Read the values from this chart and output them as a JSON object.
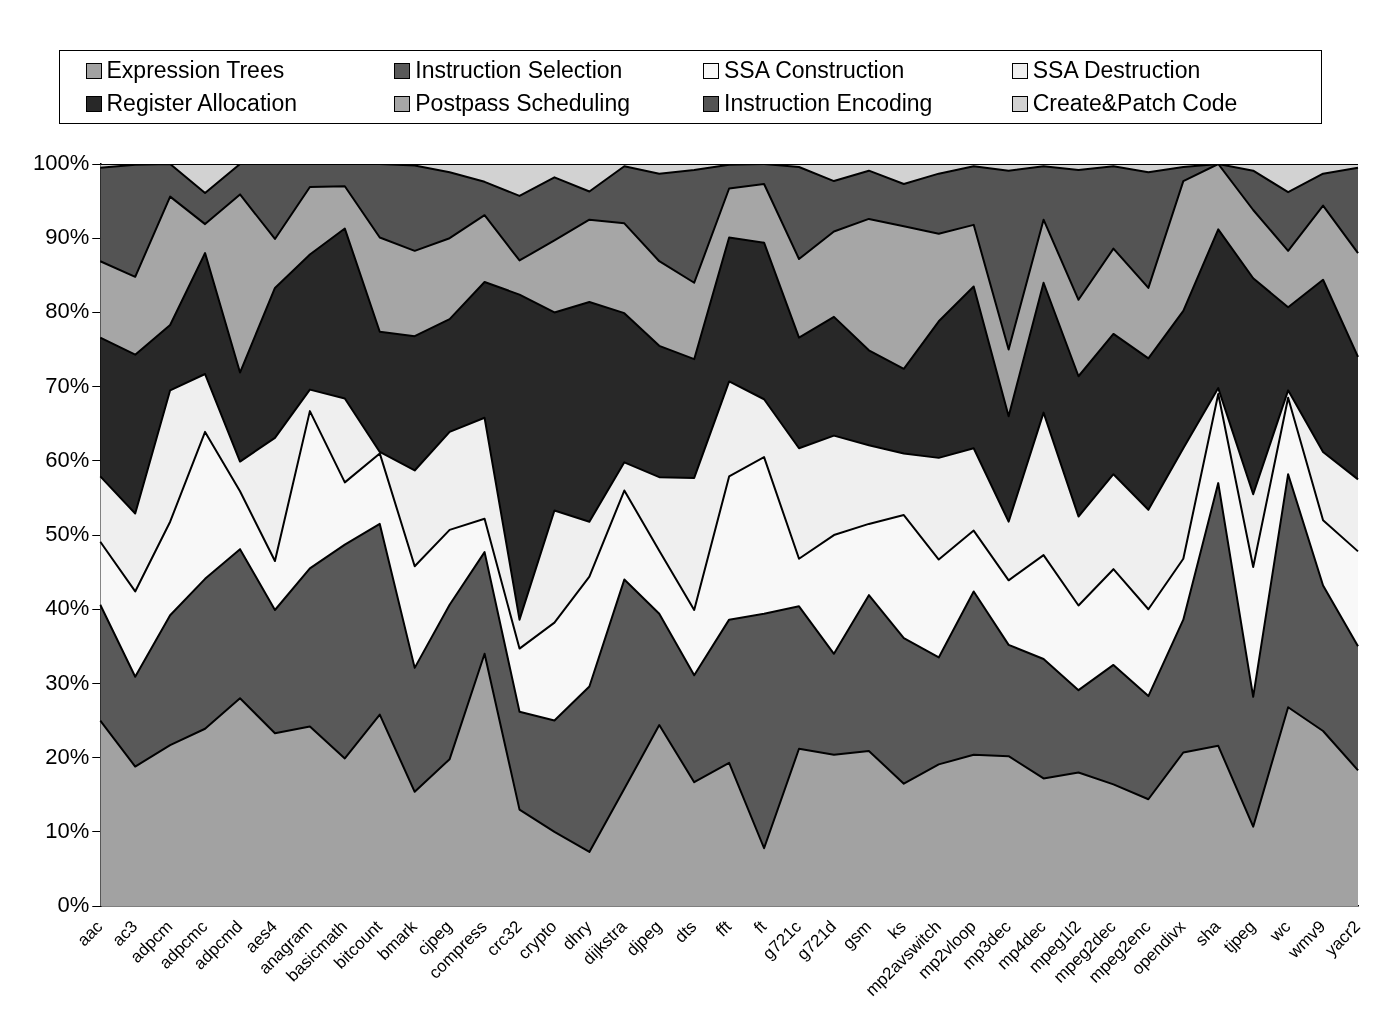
{
  "chart_data": {
    "type": "area",
    "stacked": true,
    "legend": "top",
    "grid": false,
    "marker": "none",
    "categories": [
      "aac",
      "ac3",
      "adpcm",
      "adpcmc",
      "adpcmd",
      "aes4",
      "anagram",
      "basicmath",
      "bitcount",
      "bmark",
      "cjpeg",
      "compress",
      "crc32",
      "crypto",
      "dhry",
      "dijkstra",
      "djpeg",
      "dts",
      "fft",
      "ft",
      "g721c",
      "g721d",
      "gsm",
      "ks",
      "mp2avswitch",
      "mp2vloop",
      "mp3dec",
      "mp4dec",
      "mpeg1l2",
      "mpeg2dec",
      "mpeg2enc",
      "opendivx",
      "sha",
      "tjpeg",
      "wc",
      "wmv9",
      "yacr2"
    ],
    "ylim": [
      0,
      100
    ],
    "yticks": [
      {
        "value": 0,
        "label": "0%"
      },
      {
        "value": 10,
        "label": "10%"
      },
      {
        "value": 20,
        "label": "20%"
      },
      {
        "value": 30,
        "label": "30%"
      },
      {
        "value": 40,
        "label": "40%"
      },
      {
        "value": 50,
        "label": "50%"
      },
      {
        "value": 60,
        "label": "60%"
      },
      {
        "value": 70,
        "label": "70%"
      },
      {
        "value": 80,
        "label": "80%"
      },
      {
        "value": 90,
        "label": "90%"
      },
      {
        "value": 100,
        "label": "100%"
      }
    ],
    "series": [
      {
        "name": "Expression Trees",
        "color": "#a2a2a2",
        "values": [
          25.0,
          18.8,
          21.7,
          23.9,
          28.0,
          23.3,
          24.2,
          19.9,
          25.8,
          15.4,
          19.8,
          34.0,
          13.0,
          10.0,
          7.3,
          15.8,
          24.4,
          16.7,
          19.3,
          7.8,
          21.2,
          20.4,
          20.9,
          16.5,
          19.1,
          20.4,
          20.2,
          17.2,
          18.0,
          16.4,
          14.4,
          20.7,
          21.6,
          10.7,
          26.8,
          23.6,
          18.3
        ]
      },
      {
        "name": "Instruction Selection",
        "color": "#595959",
        "values": [
          15.6,
          12.1,
          17.5,
          20.2,
          20.1,
          16.6,
          21.3,
          28.8,
          25.7,
          16.7,
          20.8,
          13.7,
          13.2,
          15.0,
          22.3,
          28.2,
          15.0,
          14.4,
          19.3,
          31.6,
          19.2,
          13.6,
          21.0,
          19.6,
          14.4,
          22.0,
          15.0,
          16.1,
          11.1,
          16.1,
          13.9,
          17.9,
          35.4,
          17.5,
          31.4,
          19.6,
          16.7
        ]
      },
      {
        "name": "SSA Construction",
        "color": "#f8f8f8",
        "values": [
          8.5,
          11.5,
          12.6,
          19.8,
          7.8,
          6.6,
          21.2,
          8.4,
          9.5,
          13.7,
          10.1,
          4.5,
          8.5,
          13.2,
          14.8,
          12.0,
          8.5,
          8.8,
          19.3,
          21.1,
          6.4,
          16.0,
          9.6,
          16.6,
          13.2,
          8.2,
          8.7,
          14.0,
          11.4,
          12.9,
          11.7,
          8.2,
          12.0,
          17.5,
          10.3,
          8.8,
          12.8
        ]
      },
      {
        "name": "SSA Destruction",
        "color": "#efefef",
        "values": [
          8.8,
          10.5,
          17.7,
          7.8,
          4.0,
          16.6,
          2.9,
          11.3,
          0.2,
          12.9,
          13.2,
          13.6,
          3.9,
          15.1,
          7.4,
          3.8,
          9.9,
          17.8,
          12.8,
          7.8,
          14.9,
          13.4,
          10.6,
          8.3,
          13.7,
          11.1,
          7.9,
          19.2,
          12.0,
          12.8,
          13.4,
          14.9,
          0.8,
          9.8,
          1.0,
          9.2,
          9.7
        ]
      },
      {
        "name": "Register Allocation",
        "color": "#282828",
        "values": [
          18.7,
          21.4,
          8.8,
          16.3,
          12.0,
          20.2,
          18.2,
          22.9,
          16.2,
          18.1,
          15.2,
          18.3,
          43.8,
          26.7,
          29.6,
          20.1,
          17.7,
          16.0,
          19.4,
          21.1,
          14.9,
          16.0,
          12.8,
          11.4,
          18.4,
          21.8,
          14.2,
          17.5,
          18.9,
          18.9,
          20.4,
          18.5,
          21.4,
          29.1,
          11.2,
          23.2,
          16.5
        ]
      },
      {
        "name": "Postpass Scheduling",
        "color": "#a6a6a6",
        "values": [
          10.3,
          10.5,
          17.3,
          3.9,
          24.0,
          6.6,
          9.1,
          5.7,
          12.7,
          11.5,
          10.9,
          9.0,
          4.6,
          9.7,
          11.1,
          12.1,
          11.4,
          10.3,
          6.6,
          7.9,
          10.6,
          11.5,
          17.7,
          19.2,
          11.8,
          8.3,
          9.0,
          8.5,
          10.3,
          11.5,
          9.5,
          17.5,
          8.8,
          9.2,
          7.6,
          10.0,
          14.0
        ]
      },
      {
        "name": "Instruction Encoding",
        "color": "#545454",
        "values": [
          12.6,
          15.1,
          4.4,
          4.2,
          4.1,
          10.1,
          3.1,
          3.0,
          9.9,
          11.5,
          8.9,
          4.5,
          8.7,
          8.5,
          3.8,
          7.7,
          11.8,
          15.2,
          3.2,
          2.7,
          12.4,
          6.8,
          6.5,
          5.7,
          8.1,
          7.9,
          24.1,
          7.2,
          17.5,
          11.1,
          15.6,
          1.9,
          0,
          5.3,
          7.9,
          4.3,
          11.5
        ]
      },
      {
        "name": "Create&Patch Code",
        "color": "#d2d2d2",
        "values": [
          0.5,
          0.1,
          0,
          3.9,
          0,
          0,
          0,
          0,
          0,
          0.2,
          1.1,
          2.4,
          4.3,
          1.8,
          3.7,
          0.3,
          1.3,
          0.8,
          0.1,
          0,
          0.4,
          2.3,
          0.9,
          2.7,
          1.3,
          0.3,
          0.9,
          0.3,
          0.8,
          0.3,
          1.1,
          0.4,
          0,
          0.9,
          3.8,
          1.3,
          0.5
        ]
      }
    ]
  }
}
